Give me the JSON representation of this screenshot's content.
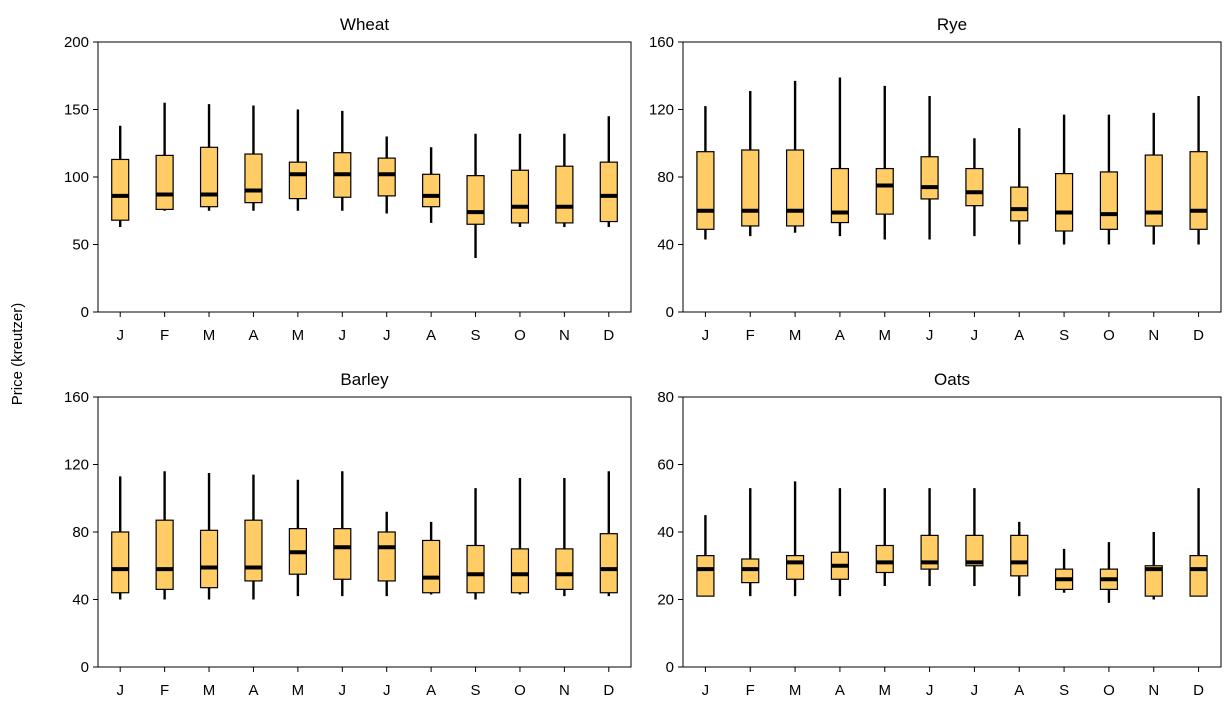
{
  "figure": {
    "ylabel": "Price (kreutzer)",
    "box_fill": "#FFCC66",
    "line_color": "#000000"
  },
  "chart_data": [
    {
      "type": "box",
      "title": "Wheat",
      "categories": [
        "J",
        "F",
        "M",
        "A",
        "M",
        "J",
        "J",
        "A",
        "S",
        "O",
        "N",
        "D"
      ],
      "ylim": [
        0,
        200
      ],
      "yticks": [
        0,
        50,
        100,
        150,
        200
      ],
      "whisker_low": [
        63,
        75,
        75,
        75,
        75,
        75,
        73,
        66,
        40,
        63,
        63,
        63
      ],
      "q1": [
        68,
        76,
        78,
        81,
        84,
        85,
        86,
        78,
        65,
        66,
        66,
        67
      ],
      "median": [
        86,
        87,
        87,
        90,
        102,
        102,
        102,
        86,
        74,
        78,
        78,
        86
      ],
      "q3": [
        113,
        116,
        122,
        117,
        111,
        118,
        114,
        102,
        101,
        105,
        108,
        111
      ],
      "whisker_high": [
        138,
        155,
        154,
        153,
        150,
        149,
        130,
        122,
        132,
        132,
        132,
        145
      ]
    },
    {
      "type": "box",
      "title": "Rye",
      "categories": [
        "J",
        "F",
        "M",
        "A",
        "M",
        "J",
        "J",
        "A",
        "S",
        "O",
        "N",
        "D"
      ],
      "ylim": [
        0,
        160
      ],
      "yticks": [
        0,
        40,
        80,
        120,
        160
      ],
      "whisker_low": [
        43,
        45,
        47,
        45,
        43,
        43,
        45,
        40,
        40,
        40,
        40,
        40
      ],
      "q1": [
        49,
        51,
        51,
        53,
        58,
        67,
        63,
        54,
        48,
        49,
        51,
        49
      ],
      "median": [
        60,
        60,
        60,
        59,
        75,
        74,
        71,
        61,
        59,
        58,
        59,
        60
      ],
      "q3": [
        95,
        96,
        96,
        85,
        85,
        92,
        85,
        74,
        82,
        83,
        93,
        95
      ],
      "whisker_high": [
        122,
        131,
        137,
        139,
        134,
        128,
        103,
        109,
        117,
        117,
        118,
        128
      ]
    },
    {
      "type": "box",
      "title": "Barley",
      "categories": [
        "J",
        "F",
        "M",
        "A",
        "M",
        "J",
        "J",
        "A",
        "S",
        "O",
        "N",
        "D"
      ],
      "ylim": [
        0,
        160
      ],
      "yticks": [
        0,
        40,
        80,
        120,
        160
      ],
      "whisker_low": [
        40,
        40,
        40,
        40,
        42,
        42,
        42,
        43,
        40,
        43,
        42,
        42
      ],
      "q1": [
        44,
        46,
        47,
        51,
        55,
        52,
        51,
        44,
        44,
        44,
        46,
        44
      ],
      "median": [
        58,
        58,
        59,
        59,
        68,
        71,
        71,
        53,
        55,
        55,
        55,
        58
      ],
      "q3": [
        80,
        87,
        81,
        87,
        82,
        82,
        80,
        75,
        72,
        70,
        70,
        79
      ],
      "whisker_high": [
        113,
        116,
        115,
        114,
        111,
        116,
        92,
        86,
        106,
        112,
        112,
        116
      ]
    },
    {
      "type": "box",
      "title": "Oats",
      "categories": [
        "J",
        "F",
        "M",
        "A",
        "M",
        "J",
        "J",
        "A",
        "S",
        "O",
        "N",
        "D"
      ],
      "ylim": [
        0,
        80
      ],
      "yticks": [
        0,
        20,
        40,
        60,
        80
      ],
      "whisker_low": [
        21,
        21,
        21,
        21,
        24,
        24,
        24,
        21,
        22,
        19,
        20,
        21
      ],
      "q1": [
        21,
        25,
        26,
        26,
        28,
        29,
        30,
        27,
        23,
        23,
        21,
        21
      ],
      "median": [
        29,
        29,
        31,
        30,
        31,
        31,
        31,
        31,
        26,
        26,
        29,
        29
      ],
      "q3": [
        33,
        32,
        33,
        34,
        36,
        39,
        39,
        39,
        29,
        29,
        30,
        33
      ],
      "whisker_high": [
        45,
        53,
        55,
        53,
        53,
        53,
        53,
        43,
        35,
        37,
        40,
        53
      ]
    }
  ]
}
